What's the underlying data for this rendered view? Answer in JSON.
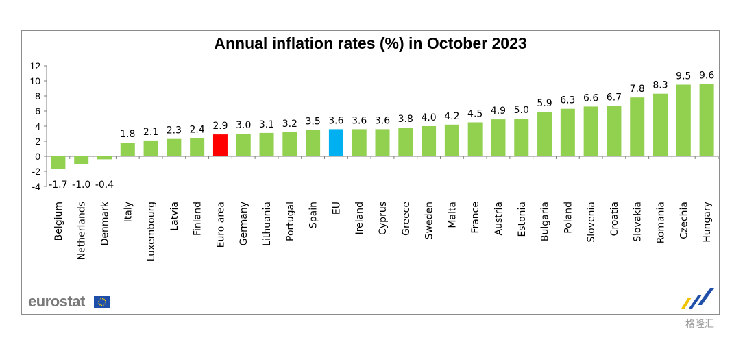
{
  "brand": {
    "logo_text": "eurostat",
    "watermark": "格隆汇"
  },
  "colors": {
    "default_bar": "#92d050",
    "euro_area_bar": "#ff0000",
    "eu_bar": "#00b0f0"
  },
  "chart_data": {
    "type": "bar",
    "title": "Annual inflation rates (%) in October 2023",
    "xlabel": "",
    "ylabel": "",
    "ylim": [
      -4,
      12
    ],
    "yticks": [
      12,
      10,
      8,
      6,
      4,
      2,
      0,
      -2,
      -4
    ],
    "grid": false,
    "legend": "none",
    "categories": [
      "Belgium",
      "Netherlands",
      "Denmark",
      "Italy",
      "Luxembourg",
      "Latvia",
      "Finland",
      "Euro area",
      "Germany",
      "Lithuania",
      "Portugal",
      "Spain",
      "EU",
      "Ireland",
      "Cyprus",
      "Greece",
      "Sweden",
      "Malta",
      "France",
      "Austria",
      "Estonia",
      "Bulgaria",
      "Poland",
      "Slovenia",
      "Croatia",
      "Slovakia",
      "Romania",
      "Czechia",
      "Hungary"
    ],
    "values": [
      -1.7,
      -1.0,
      -0.4,
      1.8,
      2.1,
      2.3,
      2.4,
      2.9,
      3.0,
      3.1,
      3.2,
      3.5,
      3.6,
      3.6,
      3.6,
      3.8,
      4.0,
      4.2,
      4.5,
      4.9,
      5.0,
      5.9,
      6.3,
      6.6,
      6.7,
      7.8,
      8.3,
      9.5,
      9.6
    ],
    "value_labels": [
      "-1.7",
      "-1.0",
      "-0.4",
      "1.8",
      "2.1",
      "2.3",
      "2.4",
      "2.9",
      "3.0",
      "3.1",
      "3.2",
      "3.5",
      "3.6",
      "3.6",
      "3.6",
      "3.8",
      "4.0",
      "4.2",
      "4.5",
      "4.9",
      "5.0",
      "5.9",
      "6.3",
      "6.6",
      "6.7",
      "7.8",
      "8.3",
      "9.5",
      "9.6"
    ],
    "highlight": {
      "Euro area": "#ff0000",
      "EU": "#00b0f0"
    }
  }
}
